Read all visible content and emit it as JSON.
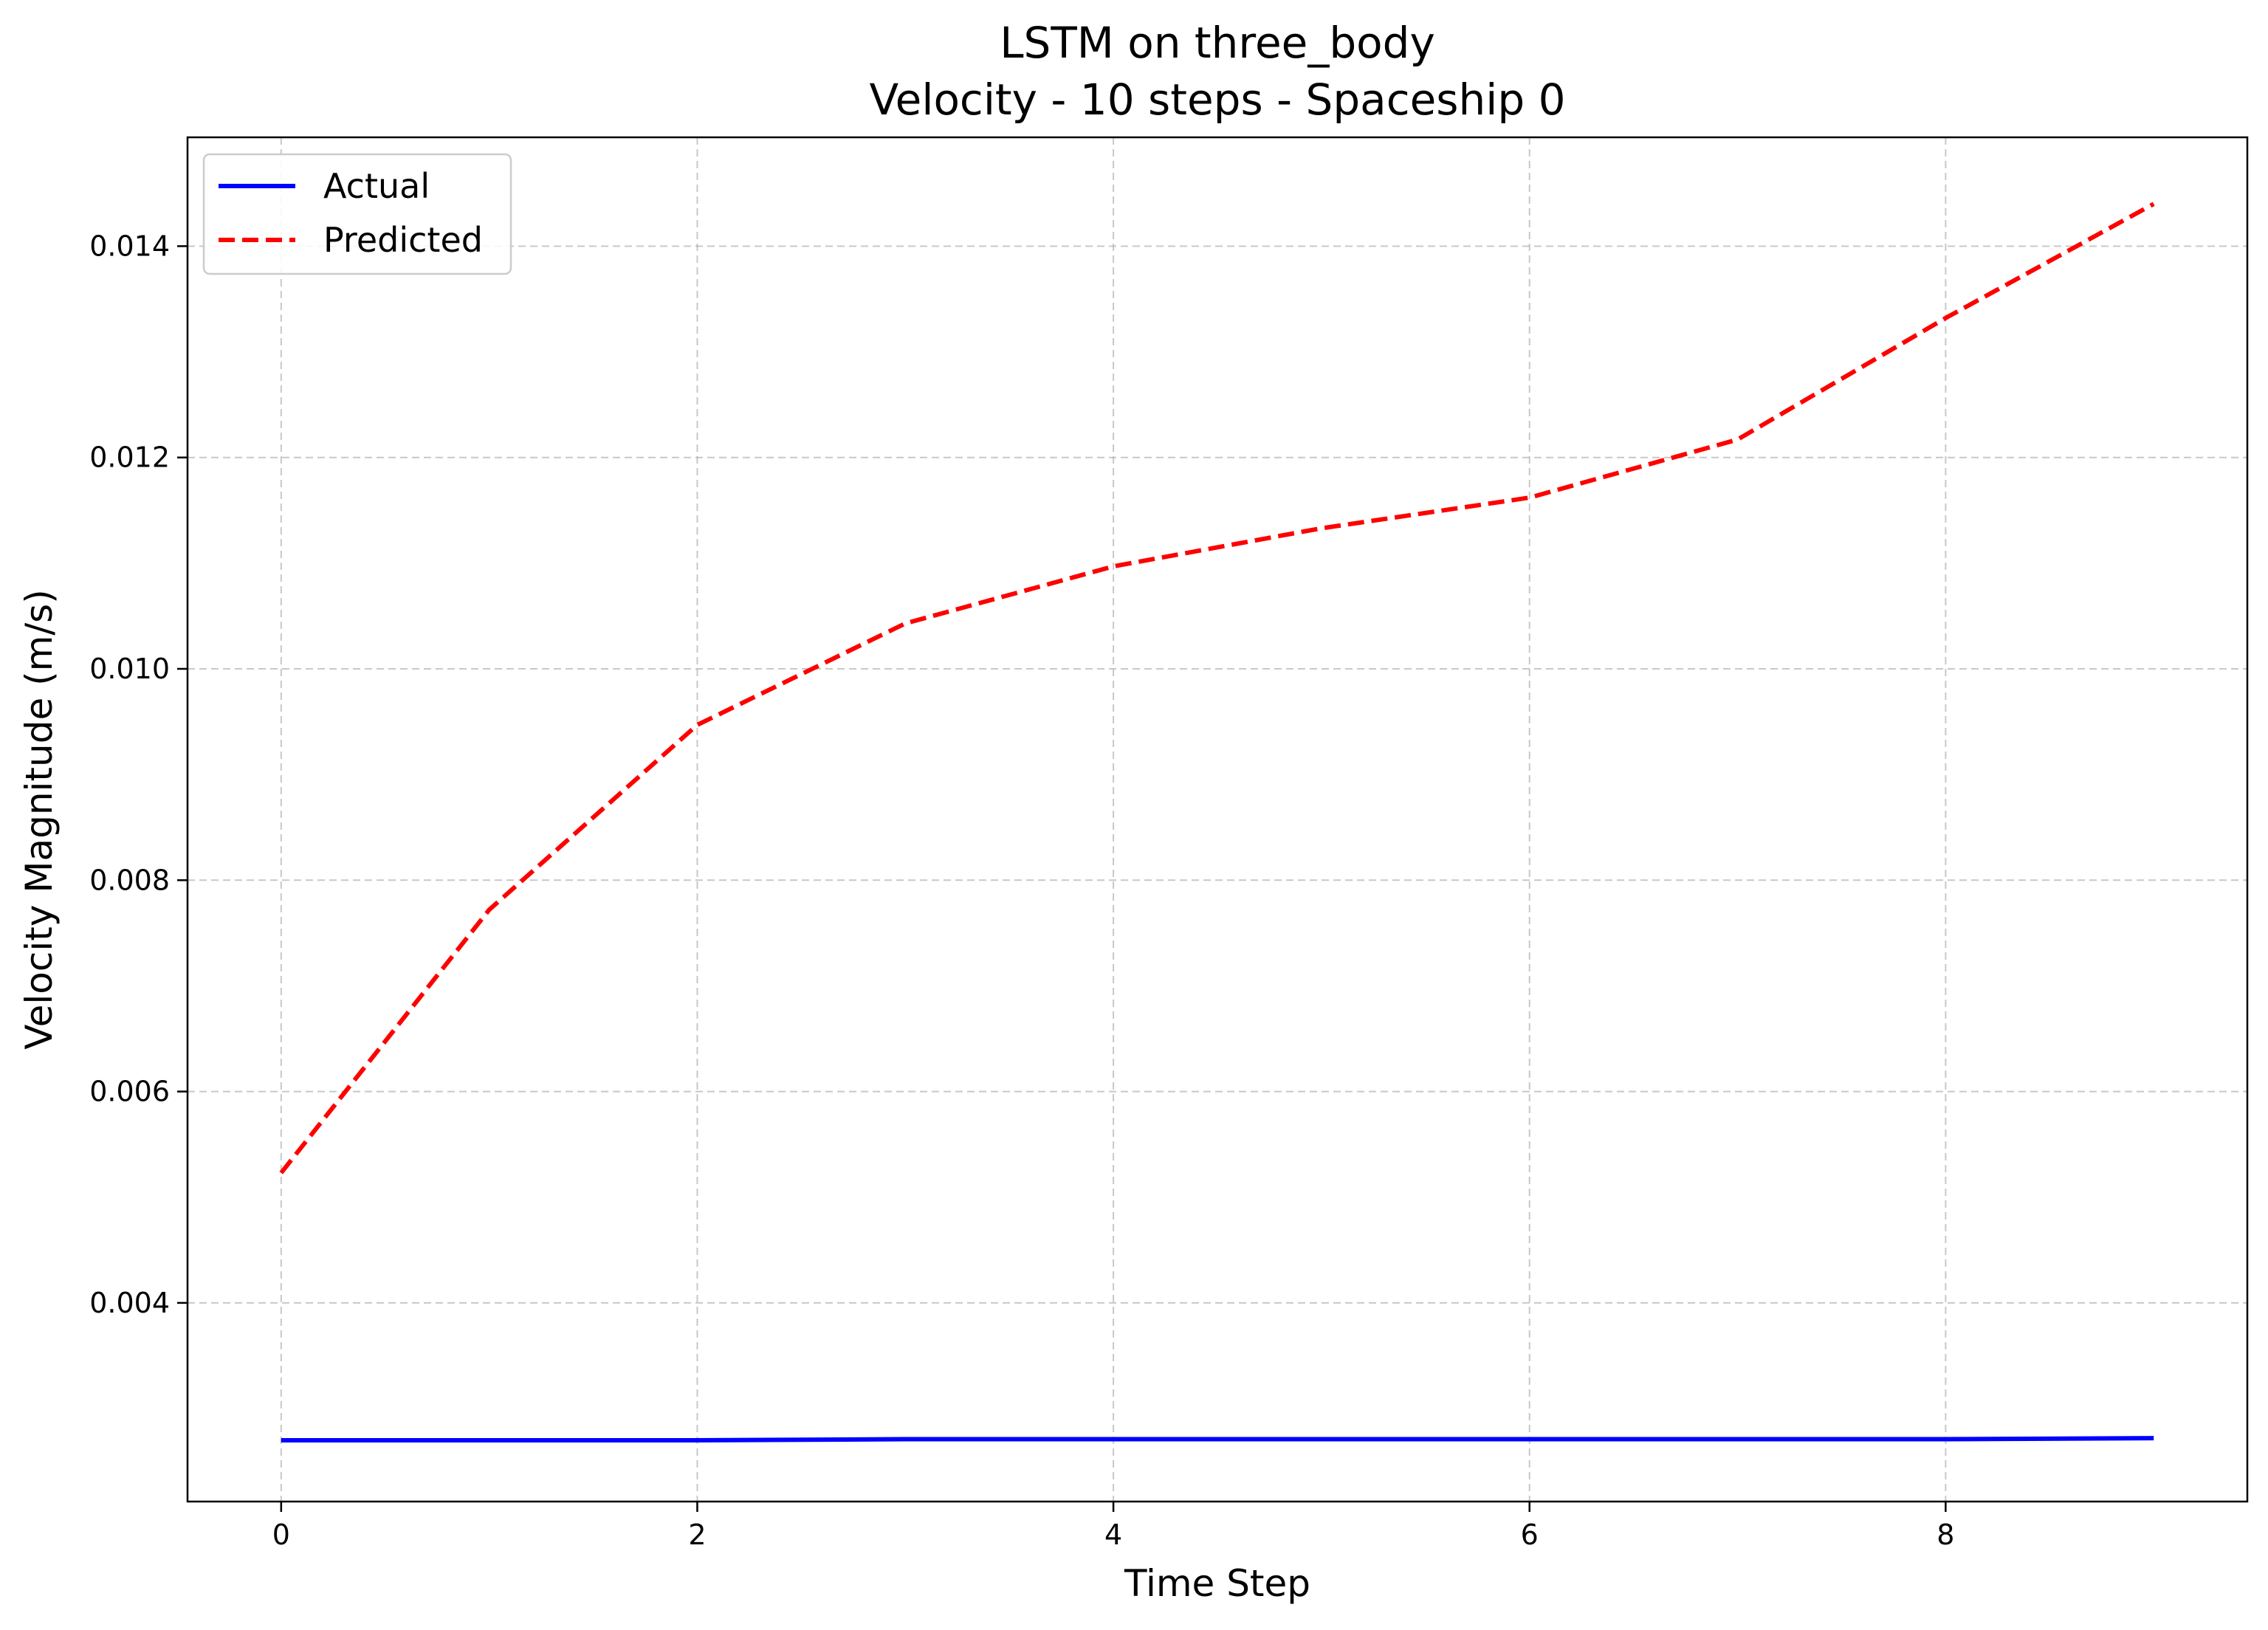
{
  "chart_data": {
    "type": "line",
    "title": "LSTM on three_body",
    "subtitle": "Velocity - 10 steps - Spaceship 0",
    "xlabel": "Time Step",
    "ylabel": "Velocity Magnitude (m/s)",
    "x": [
      0,
      1,
      2,
      3,
      4,
      5,
      6,
      7,
      8,
      9
    ],
    "xlim": [
      -0.45,
      9.45
    ],
    "ylim": [
      0.00212,
      0.01503
    ],
    "xticks": [
      0,
      2,
      4,
      6,
      8
    ],
    "xtick_labels": [
      "0",
      "2",
      "4",
      "6",
      "8"
    ],
    "yticks": [
      0.004,
      0.006,
      0.008,
      0.01,
      0.012,
      0.014
    ],
    "ytick_labels": [
      "0.004",
      "0.006",
      "0.008",
      "0.010",
      "0.012",
      "0.014"
    ],
    "grid": true,
    "legend_position": "top-left",
    "series": [
      {
        "name": "Actual",
        "color": "#0000ff",
        "style": "solid",
        "values": [
          0.0027,
          0.0027,
          0.0027,
          0.00271,
          0.00271,
          0.00271,
          0.00271,
          0.00271,
          0.00271,
          0.00272
        ]
      },
      {
        "name": "Predicted",
        "color": "#ff0000",
        "style": "dashed",
        "values": [
          0.00523,
          0.00772,
          0.00947,
          0.01043,
          0.01097,
          0.01133,
          0.01162,
          0.01217,
          0.01332,
          0.0144
        ]
      }
    ]
  }
}
